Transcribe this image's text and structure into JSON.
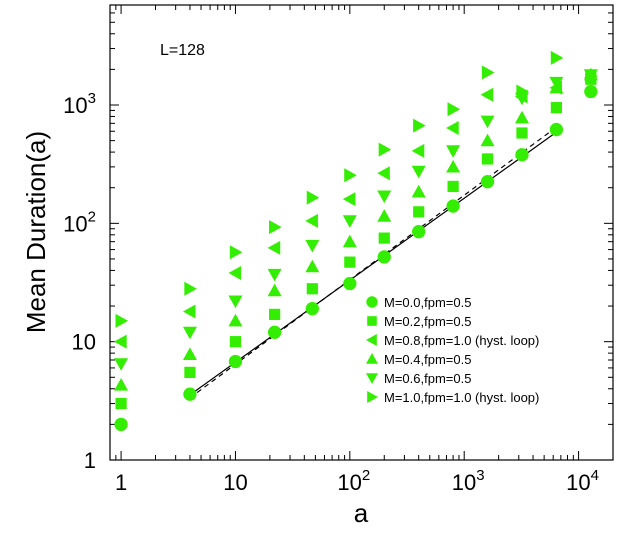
{
  "chart_data": {
    "type": "scatter",
    "xscale": "log",
    "yscale": "log",
    "xlim": [
      0.8,
      20000
    ],
    "ylim": [
      1,
      7000
    ],
    "xlabel": "a",
    "ylabel": "Mean Duration(a)",
    "annotation": "L=128",
    "grid": false,
    "legend_position": "lower-right",
    "marker_color": "#33ee00",
    "x_ticks": [
      {
        "value": 1,
        "label": "1"
      },
      {
        "value": 10,
        "label": "10"
      },
      {
        "value": 100,
        "label": "10",
        "exp": "2"
      },
      {
        "value": 1000,
        "label": "10",
        "exp": "3"
      },
      {
        "value": 10000,
        "label": "10",
        "exp": "4"
      }
    ],
    "y_ticks": [
      {
        "value": 1,
        "label": "1"
      },
      {
        "value": 10,
        "label": "10"
      },
      {
        "value": 100,
        "label": "10",
        "exp": "2"
      },
      {
        "value": 1000,
        "label": "10",
        "exp": "3"
      }
    ],
    "series": [
      {
        "name": "M=0.0,fpm=0.5",
        "marker": "circle",
        "x": [
          1,
          4,
          10,
          22,
          47,
          100,
          200,
          400,
          800,
          1600,
          3200,
          6400,
          12800
        ],
        "y": [
          2.0,
          3.6,
          6.8,
          12,
          19,
          31,
          52,
          85,
          140,
          225,
          380,
          620,
          1300
        ]
      },
      {
        "name": "M=0.2,fpm=0.5",
        "marker": "square",
        "x": [
          1,
          4,
          10,
          22,
          47,
          100,
          200,
          400,
          800,
          1600,
          3200,
          6400,
          12800
        ],
        "y": [
          3.0,
          5.5,
          10,
          17,
          28,
          47,
          75,
          125,
          205,
          350,
          580,
          950,
          1650
        ]
      },
      {
        "name": "M=0.8,fpm=1.0 (hyst. loop)",
        "marker": "triangle-left",
        "x": [
          1,
          4,
          10,
          22,
          47,
          100,
          200,
          400,
          800,
          1600,
          3200,
          6400,
          12800
        ],
        "y": [
          10,
          18,
          38,
          62,
          105,
          160,
          265,
          410,
          640,
          1220,
          1180,
          1400,
          1700
        ]
      },
      {
        "name": "M=0.4,fpm=0.5",
        "marker": "triangle-up",
        "x": [
          1,
          4,
          10,
          22,
          47,
          100,
          200,
          400,
          800,
          1600,
          3200,
          6400,
          12800
        ],
        "y": [
          4.3,
          7.8,
          15,
          27,
          43,
          70,
          115,
          185,
          300,
          500,
          780,
          1400,
          1800
        ]
      },
      {
        "name": "M=0.6,fpm=0.5",
        "marker": "triangle-down",
        "x": [
          1,
          4,
          10,
          22,
          47,
          100,
          200,
          400,
          800,
          1600,
          3200,
          6400,
          12800
        ],
        "y": [
          6.5,
          12,
          22,
          37,
          65,
          105,
          170,
          275,
          410,
          730,
          1140,
          1550,
          1800
        ]
      },
      {
        "name": "M=1.0,fpm=1.0 (hyst. loop)",
        "marker": "triangle-right",
        "x": [
          1,
          4,
          10,
          22,
          47,
          100,
          200,
          400,
          800,
          1600,
          3200,
          6400,
          12800
        ],
        "y": [
          15,
          28,
          57,
          93,
          165,
          255,
          420,
          670,
          920,
          1880,
          1300,
          2500,
          1750
        ]
      }
    ],
    "fit_lines": [
      {
        "style": "solid",
        "x": [
          4,
          6400
        ],
        "y": [
          3.55,
          590
        ]
      },
      {
        "style": "dashed",
        "x": [
          4,
          6400
        ],
        "y": [
          3.35,
          650
        ]
      }
    ]
  }
}
